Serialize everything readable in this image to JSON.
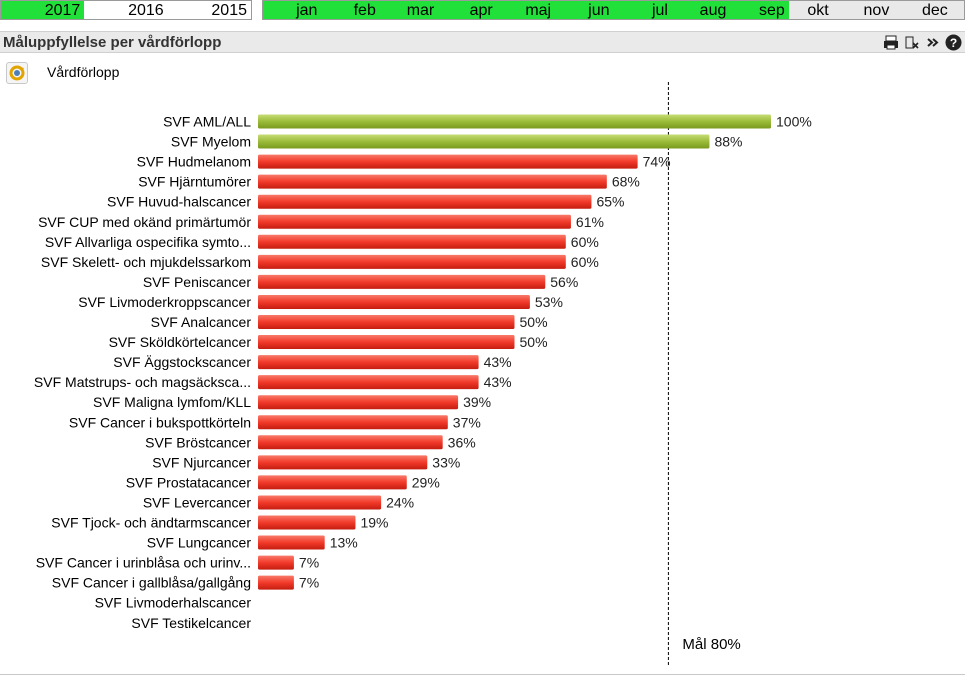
{
  "filters": {
    "years": [
      {
        "label": "2017",
        "state": "selected"
      },
      {
        "label": "2016",
        "state": "available"
      },
      {
        "label": "2015",
        "state": "available"
      }
    ],
    "months": [
      {
        "label": "jan",
        "state": "selected"
      },
      {
        "label": "feb",
        "state": "selected"
      },
      {
        "label": "mar",
        "state": "selected"
      },
      {
        "label": "apr",
        "state": "selected"
      },
      {
        "label": "maj",
        "state": "selected"
      },
      {
        "label": "jun",
        "state": "selected"
      },
      {
        "label": "jul",
        "state": "selected"
      },
      {
        "label": "aug",
        "state": "selected"
      },
      {
        "label": "sep",
        "state": "selected"
      },
      {
        "label": "okt",
        "state": "available"
      },
      {
        "label": "nov",
        "state": "available"
      },
      {
        "label": "dec",
        "state": "available"
      }
    ]
  },
  "caption": {
    "title": "Måluppfyllelse per vårdförlopp",
    "icons": [
      "printer-icon",
      "clear-icon",
      "more-icon",
      "help-icon"
    ]
  },
  "dimension_label": "Vårdförlopp",
  "colors": {
    "above_target": "#9bbb3a",
    "below_target": "#f23a2a",
    "selected_filter": "#22e03a"
  },
  "chart_data": {
    "type": "bar",
    "orientation": "horizontal",
    "categories": [
      "SVF AML/ALL",
      "SVF Myelom",
      "SVF Hudmelanom",
      "SVF Hjärntumörer",
      "SVF Huvud-halscancer",
      "SVF CUP med okänd primärtumör",
      "SVF Allvarliga ospecifika symto...",
      "SVF Skelett- och mjukdelssarkom",
      "SVF Peniscancer",
      "SVF Livmoderkroppscancer",
      "SVF Analcancer",
      "SVF Sköldkörtelcancer",
      "SVF Äggstockscancer",
      "SVF Matstrups- och magsäcksca...",
      "SVF Maligna lymfom/KLL",
      "SVF Cancer i bukspottkörteln",
      "SVF Bröstcancer",
      "SVF Njurcancer",
      "SVF Prostatacancer",
      "SVF Levercancer",
      "SVF Tjock- och ändtarmscancer",
      "SVF Lungcancer",
      "SVF Cancer i urinblåsa och urinv...",
      "SVF Cancer i gallblåsa/gallgång",
      "SVF Livmoderhalscancer",
      "SVF Testikelcancer"
    ],
    "values": [
      100,
      88,
      74,
      68,
      65,
      61,
      60,
      60,
      56,
      53,
      50,
      50,
      43,
      43,
      39,
      37,
      36,
      33,
      29,
      24,
      19,
      13,
      7,
      7,
      null,
      null
    ],
    "value_labels": [
      "100%",
      "88%",
      "74%",
      "68%",
      "65%",
      "61%",
      "60%",
      "60%",
      "56%",
      "53%",
      "50%",
      "50%",
      "43%",
      "43%",
      "39%",
      "37%",
      "36%",
      "33%",
      "29%",
      "24%",
      "19%",
      "13%",
      "7%",
      "7%",
      "",
      ""
    ],
    "xlim": [
      0,
      100
    ],
    "reference_line": {
      "value": 80,
      "label": "Mål 80%"
    },
    "grid": false,
    "legend": "none"
  }
}
